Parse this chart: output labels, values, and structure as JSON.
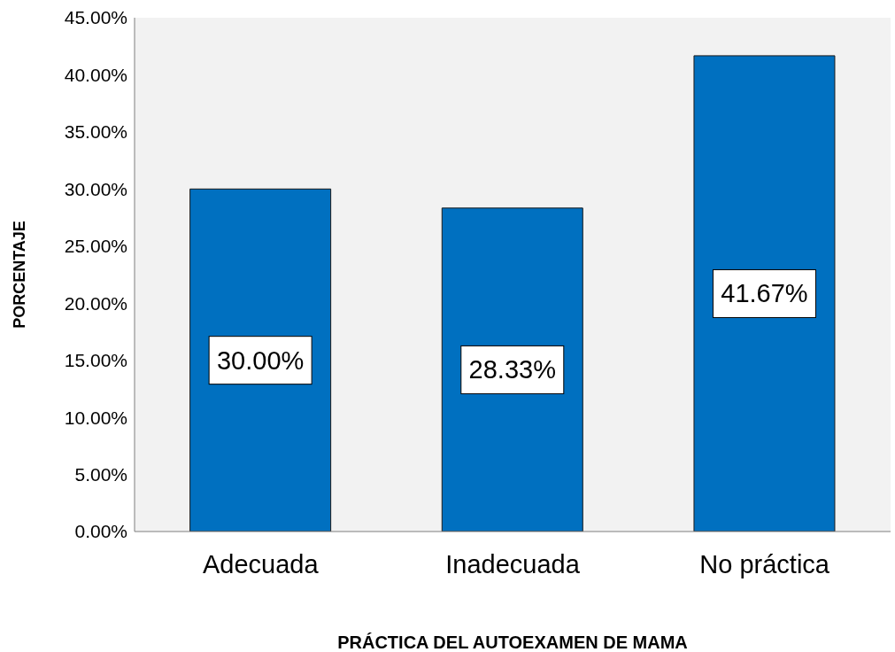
{
  "chart_data": {
    "type": "bar",
    "xlabel": "PRÁCTICA DEL AUTOEXAMEN DE MAMA",
    "ylabel": "PORCENTAJE",
    "categories": [
      "Adecuada",
      "Inadecuada",
      "No práctica"
    ],
    "values": [
      30,
      28.33,
      41.67
    ],
    "value_labels": [
      "30.00%",
      "28.33%",
      "41.67%"
    ],
    "color": "#0070c0",
    "ylim": [
      0,
      45
    ],
    "yticks": [
      {
        "value": 0,
        "label": "0.00%"
      },
      {
        "value": 5,
        "label": "5.00%"
      },
      {
        "value": 10,
        "label": "10.00%"
      },
      {
        "value": 15,
        "label": "15.00%"
      },
      {
        "value": 20,
        "label": "20.00%"
      },
      {
        "value": 25,
        "label": "25.00%"
      },
      {
        "value": 30,
        "label": "30.00%"
      },
      {
        "value": 35,
        "label": "35.00%"
      },
      {
        "value": 40,
        "label": "40.00%"
      },
      {
        "value": 45,
        "label": "45.00%"
      }
    ],
    "legend": false
  }
}
